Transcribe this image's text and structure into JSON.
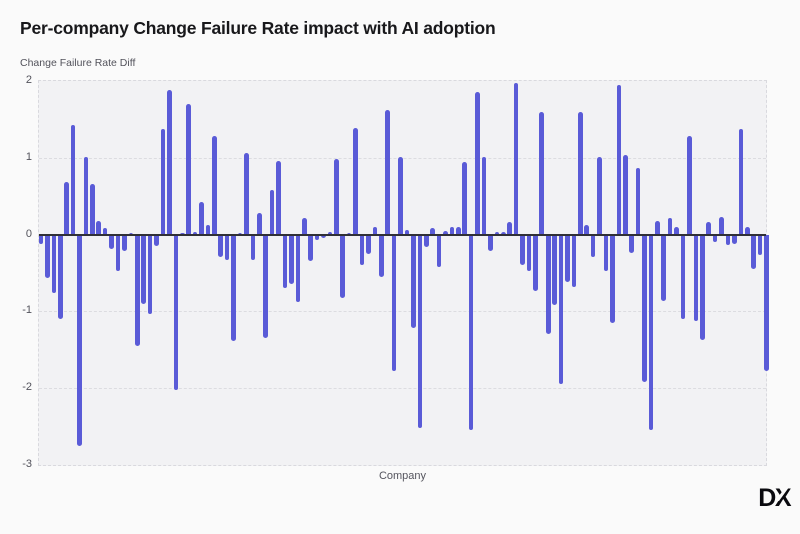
{
  "header": {
    "title": "Per-company Change Failure Rate impact with AI adoption"
  },
  "logo": {
    "text": "DX"
  },
  "colors": {
    "bar": "#5A5BD7",
    "zero_line": "#303036",
    "plot_background": "#F2F2F4",
    "page_background": "#FAFAFA",
    "gridline": "#DCDCE0",
    "text_muted": "#52525B"
  },
  "chart_data": {
    "type": "bar",
    "title": "Per-company Change Failure Rate impact with AI adoption",
    "xlabel": "Company",
    "ylabel": "Change Failure Rate Diff",
    "ylim": [
      -3,
      2
    ],
    "yticks": [
      2,
      1,
      0,
      -1,
      -2,
      -3
    ],
    "grid": "horizontal-dashed",
    "legend": "none",
    "x_categories_note": "one anonymous company per bar",
    "values": [
      -0.12,
      -0.57,
      -0.76,
      -1.1,
      0.68,
      1.43,
      -2.75,
      1.01,
      0.66,
      0.18,
      0.08,
      -0.19,
      -0.47,
      -0.21,
      0.02,
      -1.45,
      -0.9,
      -1.03,
      -0.15,
      1.37,
      1.88,
      -2.03,
      0.02,
      1.7,
      0.03,
      0.42,
      0.13,
      1.29,
      -0.29,
      -0.33,
      -1.39,
      0.02,
      1.06,
      -0.33,
      0.28,
      -1.34,
      0.58,
      0.96,
      -0.7,
      -0.64,
      -0.88,
      0.22,
      -0.34,
      -0.07,
      -0.05,
      0.03,
      0.98,
      -0.83,
      0.02,
      1.39,
      -0.4,
      -0.25,
      0.1,
      -0.55,
      1.62,
      -1.77,
      1.01,
      0.06,
      -1.22,
      -2.52,
      -0.16,
      0.09,
      -0.42,
      0.05,
      0.1,
      0.1,
      0.95,
      -2.55,
      1.86,
      1.01,
      -0.21,
      0.03,
      0.04,
      0.17,
      1.98,
      -0.4,
      -0.47,
      -0.73,
      1.6,
      -1.29,
      -0.92,
      -1.94,
      -0.62,
      -0.68,
      1.6,
      0.13,
      -0.29,
      1.01,
      -0.47,
      -1.15,
      1.95,
      1.03,
      -0.24,
      0.87,
      -1.92,
      -2.55,
      0.18,
      -0.86,
      0.22,
      0.1,
      -1.1,
      1.29,
      -1.13,
      -1.37,
      0.16,
      -0.1,
      0.23,
      -0.14,
      -0.12,
      1.38,
      0.1,
      -0.45,
      -0.27,
      -1.77
    ]
  }
}
